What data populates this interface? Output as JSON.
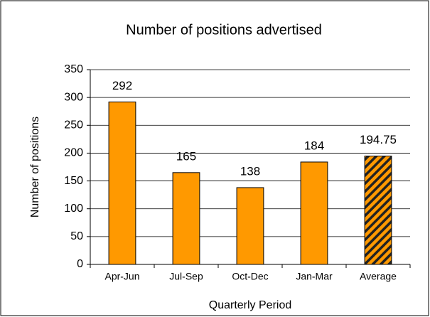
{
  "chart_data": {
    "type": "bar",
    "title": "Number of positions advertised",
    "x_label": "Quarterly Period",
    "y_label": "Number of positions",
    "categories": [
      "Apr-Jun",
      "Jul-Sep",
      "Oct-Dec",
      "Jan-Mar",
      "Average"
    ],
    "values": [
      292,
      165,
      138,
      184,
      194.75
    ],
    "color": "#ff9900",
    "edge_color": "#000000",
    "hatched": [
      false,
      false,
      false,
      false,
      true
    ],
    "ylim": [
      0,
      350
    ],
    "yticks": [
      0,
      50,
      100,
      150,
      200,
      250,
      300,
      350
    ],
    "grid": true
  }
}
